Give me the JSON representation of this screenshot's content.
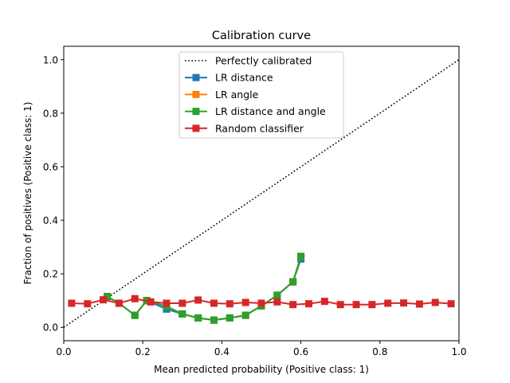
{
  "chart_data": {
    "type": "line",
    "title": "Calibration curve",
    "xlabel": "Mean predicted probability (Positive class: 1)",
    "ylabel": "Fraction of positives (Positive class: 1)",
    "xlim": [
      0.0,
      1.0
    ],
    "ylim": [
      -0.05,
      1.05
    ],
    "xticks": [
      "0.0",
      "0.2",
      "0.4",
      "0.6",
      "0.8",
      "1.0"
    ],
    "yticks": [
      "0.0",
      "0.2",
      "0.4",
      "0.6",
      "0.8",
      "1.0"
    ],
    "grid": false,
    "legend_position": "top-center",
    "series": [
      {
        "name": "Perfectly calibrated",
        "color": "#000000",
        "style": "dotted",
        "marker": "none",
        "x": [
          0.0,
          1.0
        ],
        "y": [
          0.0,
          1.0
        ]
      },
      {
        "name": "LR distance",
        "color": "#1f77b4",
        "style": "solid",
        "marker": "square",
        "x": [
          0.11,
          0.14,
          0.18,
          0.21,
          0.26,
          0.3,
          0.34,
          0.38,
          0.42,
          0.46,
          0.5,
          0.54,
          0.58,
          0.6
        ],
        "y": [
          0.115,
          0.09,
          0.045,
          0.1,
          0.068,
          0.05,
          0.035,
          0.027,
          0.035,
          0.045,
          0.08,
          0.12,
          0.17,
          0.255
        ]
      },
      {
        "name": "LR angle",
        "color": "#ff7f0e",
        "style": "solid",
        "marker": "square",
        "x": [
          0.11,
          0.14,
          0.18,
          0.21,
          0.26,
          0.3,
          0.34,
          0.38,
          0.42,
          0.46,
          0.5,
          0.54,
          0.58,
          0.6
        ],
        "y": [
          0.115,
          0.09,
          0.045,
          0.1,
          0.078,
          0.05,
          0.035,
          0.027,
          0.035,
          0.045,
          0.08,
          0.12,
          0.17,
          0.265
        ]
      },
      {
        "name": "LR distance and angle",
        "color": "#2ca02c",
        "style": "solid",
        "marker": "square",
        "x": [
          0.11,
          0.14,
          0.18,
          0.21,
          0.26,
          0.3,
          0.34,
          0.38,
          0.42,
          0.46,
          0.5,
          0.54,
          0.58,
          0.6
        ],
        "y": [
          0.115,
          0.09,
          0.045,
          0.1,
          0.078,
          0.05,
          0.035,
          0.027,
          0.035,
          0.045,
          0.08,
          0.12,
          0.17,
          0.265
        ]
      },
      {
        "name": "Random classifier",
        "color": "#d62728",
        "style": "solid",
        "marker": "square",
        "x": [
          0.02,
          0.06,
          0.1,
          0.14,
          0.18,
          0.22,
          0.26,
          0.3,
          0.34,
          0.38,
          0.42,
          0.46,
          0.5,
          0.54,
          0.58,
          0.62,
          0.66,
          0.7,
          0.74,
          0.78,
          0.82,
          0.86,
          0.9,
          0.94,
          0.98
        ],
        "y": [
          0.09,
          0.088,
          0.103,
          0.09,
          0.107,
          0.095,
          0.09,
          0.09,
          0.102,
          0.09,
          0.088,
          0.093,
          0.09,
          0.095,
          0.085,
          0.088,
          0.097,
          0.085,
          0.085,
          0.085,
          0.09,
          0.091,
          0.087,
          0.093,
          0.088
        ]
      }
    ]
  }
}
